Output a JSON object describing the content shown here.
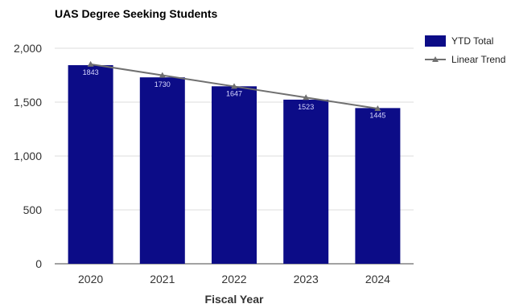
{
  "chart_data": {
    "type": "bar",
    "title": "UAS Degree Seeking Students",
    "xlabel": "Fiscal Year",
    "ylabel": "",
    "categories": [
      "2020",
      "2021",
      "2022",
      "2023",
      "2024"
    ],
    "series": [
      {
        "name": "YTD Total",
        "type": "bar",
        "values": [
          1843,
          1730,
          1647,
          1523,
          1445
        ],
        "color": "#0c0c87"
      },
      {
        "name": "Linear Trend",
        "type": "line",
        "values": [
          1852,
          1749,
          1646,
          1543,
          1440
        ],
        "color": "#707070"
      }
    ],
    "data_labels": [
      "1843",
      "1730",
      "1647",
      "1523",
      "1445"
    ],
    "y_ticks": [
      {
        "value": 0,
        "label": "0"
      },
      {
        "value": 500,
        "label": "500"
      },
      {
        "value": 1000,
        "label": "1,000"
      },
      {
        "value": 1500,
        "label": "1,500"
      },
      {
        "value": 2000,
        "label": "2,000"
      }
    ],
    "ylim": [
      0,
      2000
    ],
    "grid": true,
    "legend": {
      "position": "top-right",
      "entries": [
        "YTD Total",
        "Linear Trend"
      ]
    }
  }
}
